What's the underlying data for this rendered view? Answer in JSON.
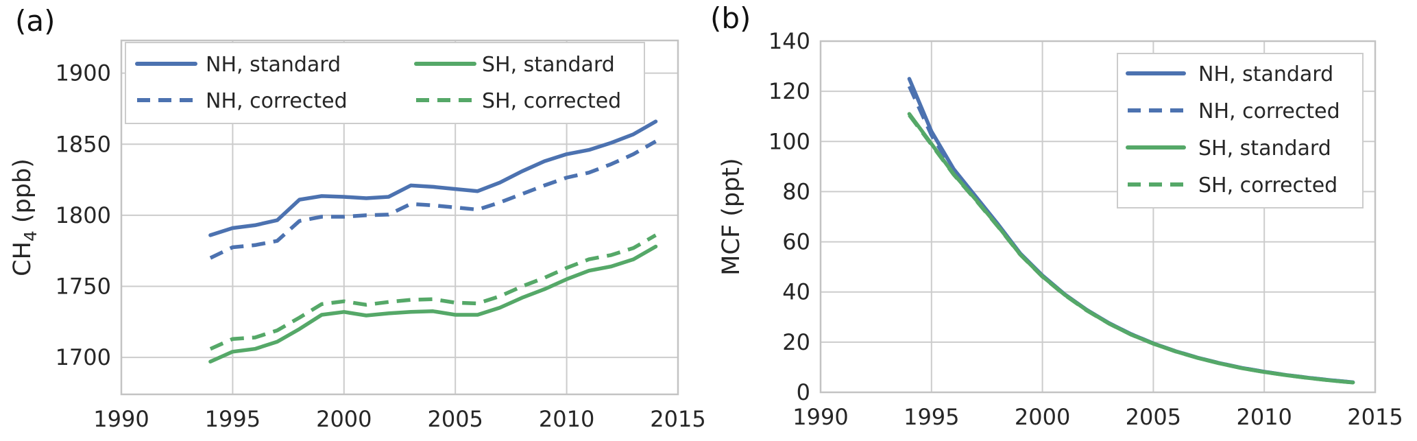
{
  "figure": {
    "background": "#ffffff",
    "colors": {
      "nh": "#4C72B0",
      "sh": "#55A868",
      "grid": "#cccccc",
      "spine": "#c3c3c3",
      "text": "#262626",
      "legend_border": "#cccccc",
      "legend_background": "#ffffff"
    }
  },
  "chart_data": [
    {
      "type": "line",
      "panel": "(a)",
      "title": "",
      "xlabel": "",
      "ylabel": "CH4 (ppb)",
      "ylabel_parts": {
        "pre": "CH",
        "sub": "4",
        "post": " (ppb)"
      },
      "xlim": [
        1990,
        2015
      ],
      "ylim": [
        1674,
        1923
      ],
      "x_ticks": [
        1990,
        1995,
        2000,
        2005,
        2010,
        2015
      ],
      "y_ticks": [
        1700,
        1750,
        1800,
        1850,
        1900
      ],
      "grid": true,
      "legend_position": "upper left",
      "legend_columns": 2,
      "x": [
        1994,
        1995,
        1996,
        1997,
        1998,
        1999,
        2000,
        2001,
        2002,
        2003,
        2004,
        2005,
        2006,
        2007,
        2008,
        2009,
        2010,
        2011,
        2012,
        2013,
        2014
      ],
      "series": [
        {
          "name": "NH, standard",
          "color": "#4C72B0",
          "linestyle": "solid",
          "values": [
            1786,
            1791,
            1793,
            1796.5,
            1811,
            1813.5,
            1813,
            1812,
            1813,
            1821,
            1820,
            1818.5,
            1817,
            1823,
            1831,
            1838,
            1843,
            1846,
            1851,
            1857,
            1866
          ]
        },
        {
          "name": "NH, corrected",
          "color": "#4C72B0",
          "linestyle": "dashed",
          "values": [
            1770,
            1777.5,
            1779,
            1782,
            1796,
            1799,
            1799,
            1800,
            1800.5,
            1808,
            1807,
            1805.5,
            1804,
            1809,
            1815,
            1821,
            1826.5,
            1830,
            1836,
            1843,
            1852
          ]
        },
        {
          "name": "SH, standard",
          "color": "#55A868",
          "linestyle": "solid",
          "values": [
            1697,
            1704,
            1706,
            1711,
            1720,
            1730,
            1732,
            1729.5,
            1731,
            1732,
            1732.5,
            1730,
            1730,
            1735,
            1742,
            1748,
            1755,
            1761,
            1764,
            1769,
            1778
          ]
        },
        {
          "name": "SH, corrected",
          "color": "#55A868",
          "linestyle": "dashed",
          "values": [
            1706,
            1713,
            1714,
            1719,
            1728,
            1737.5,
            1739.5,
            1737,
            1739,
            1740.5,
            1741,
            1738.5,
            1738,
            1743,
            1750,
            1756,
            1763,
            1769,
            1772,
            1777,
            1786
          ]
        }
      ]
    },
    {
      "type": "line",
      "panel": "(b)",
      "title": "",
      "xlabel": "",
      "ylabel": "MCF (ppt)",
      "ylabel_parts": {
        "pre": "MCF (ppt)",
        "sub": "",
        "post": ""
      },
      "xlim": [
        1990,
        2015
      ],
      "ylim": [
        0,
        140
      ],
      "x_ticks": [
        1990,
        1995,
        2000,
        2005,
        2010,
        2015
      ],
      "y_ticks": [
        0,
        20,
        40,
        60,
        80,
        100,
        120,
        140
      ],
      "grid": true,
      "legend_position": "upper right",
      "legend_columns": 1,
      "x": [
        1994,
        1995,
        1996,
        1997,
        1998,
        1999,
        2000,
        2001,
        2002,
        2003,
        2004,
        2005,
        2006,
        2007,
        2008,
        2009,
        2010,
        2011,
        2012,
        2013,
        2014
      ],
      "series": [
        {
          "name": "NH, standard",
          "color": "#4C72B0",
          "linestyle": "solid",
          "values": [
            125,
            104,
            89,
            78,
            67,
            55.4,
            46.6,
            39.1,
            32.9,
            27.6,
            23.2,
            19.5,
            16.4,
            13.8,
            11.6,
            9.7,
            8.2,
            6.9,
            5.8,
            4.8,
            4.0
          ]
        },
        {
          "name": "NH, corrected",
          "color": "#4C72B0",
          "linestyle": "dashed",
          "values": [
            122,
            102.5,
            88.2,
            77.5,
            66.6,
            55.2,
            46.5,
            39.0,
            32.8,
            27.6,
            23.2,
            19.5,
            16.4,
            13.8,
            11.6,
            9.7,
            8.2,
            6.9,
            5.8,
            4.8,
            4.0
          ]
        },
        {
          "name": "SH, standard",
          "color": "#55A868",
          "linestyle": "solid",
          "values": [
            111,
            99,
            87,
            76.8,
            66.2,
            55.0,
            46.2,
            38.9,
            32.7,
            27.4,
            23.0,
            19.4,
            16.3,
            13.7,
            11.5,
            9.6,
            8.1,
            6.8,
            5.7,
            4.7,
            3.9
          ]
        },
        {
          "name": "SH, corrected",
          "color": "#55A868",
          "linestyle": "dashed",
          "values": [
            110.5,
            98.7,
            86.8,
            76.6,
            66.0,
            54.9,
            46.1,
            38.8,
            32.6,
            27.4,
            23.0,
            19.4,
            16.3,
            13.7,
            11.5,
            9.6,
            8.1,
            6.8,
            5.7,
            4.7,
            3.9
          ]
        }
      ]
    }
  ]
}
